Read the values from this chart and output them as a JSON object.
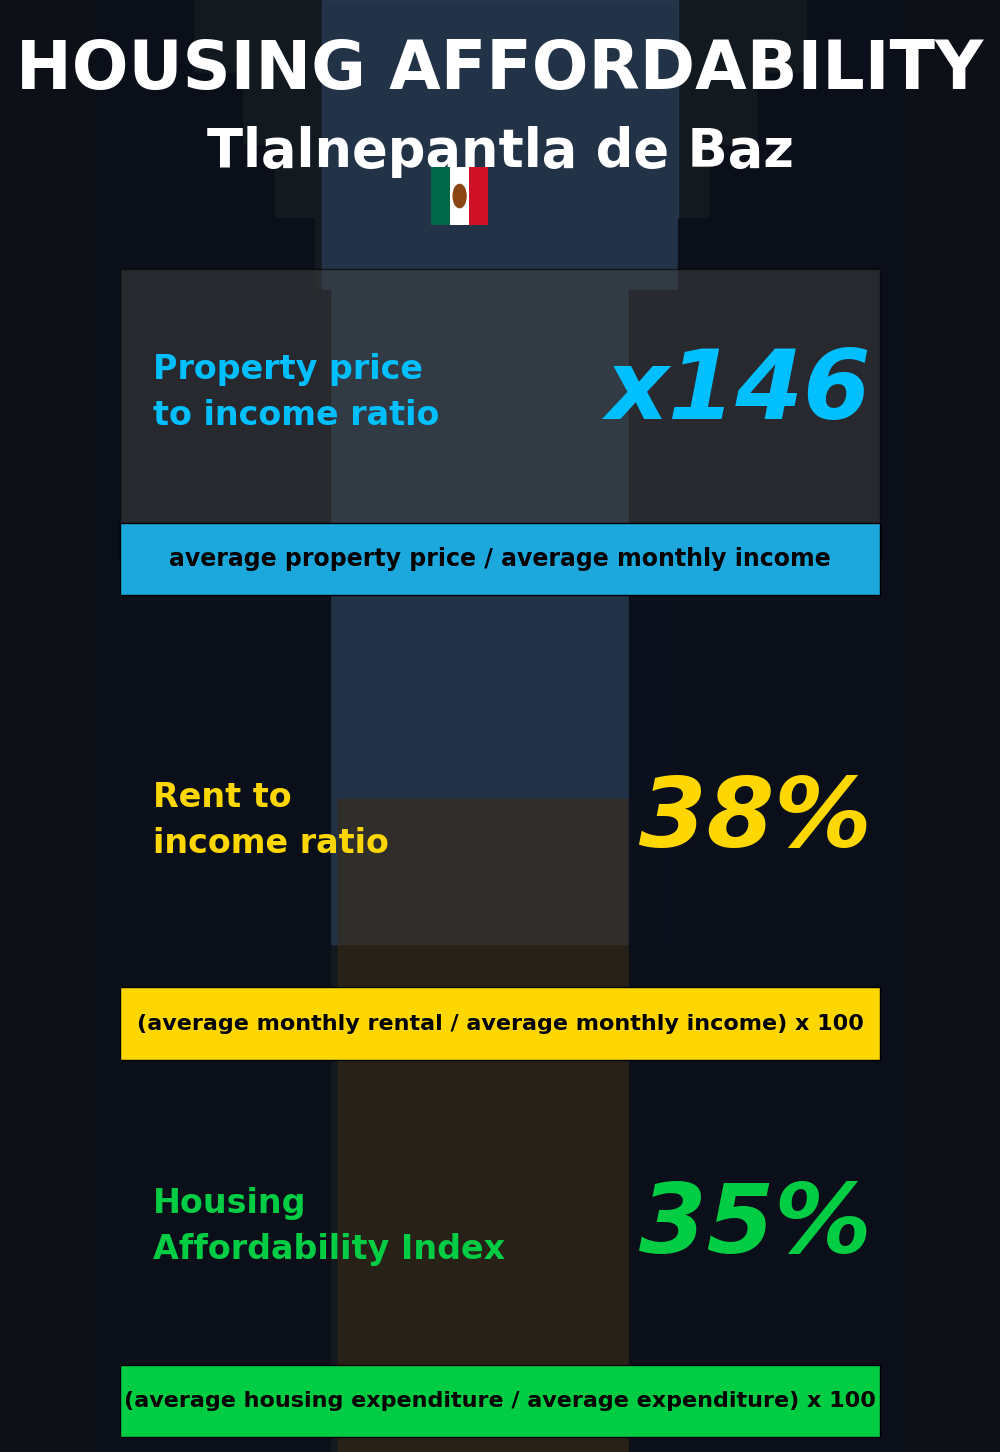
{
  "title_line1": "HOUSING AFFORDABILITY",
  "title_line2": "Tlalnepantla de Baz",
  "bg_color": "#0d1117",
  "section1_label": "Property price\nto income ratio",
  "section1_value": "x146",
  "section1_label_color": "#00bfff",
  "section1_value_color": "#00bfff",
  "section1_formula": "average property price / average monthly income",
  "section1_formula_bg": "#1ca8dd",
  "section1_formula_color": "#000000",
  "section1_box_color": "#555555",
  "section2_label": "Rent to\nincome ratio",
  "section2_value": "38%",
  "section2_label_color": "#ffd700",
  "section2_value_color": "#ffd700",
  "section2_formula": "(average monthly rental / average monthly income) x 100",
  "section2_formula_bg": "#ffd700",
  "section2_formula_color": "#000000",
  "section3_label": "Housing\nAffordability Index",
  "section3_value": "35%",
  "section3_label_color": "#00cc44",
  "section3_value_color": "#00cc44",
  "section3_formula": "(average housing expenditure / average expenditure) x 100",
  "section3_formula_bg": "#00cc44",
  "section3_formula_color": "#000000",
  "title_color": "#ffffff",
  "subtitle_color": "#ffffff"
}
